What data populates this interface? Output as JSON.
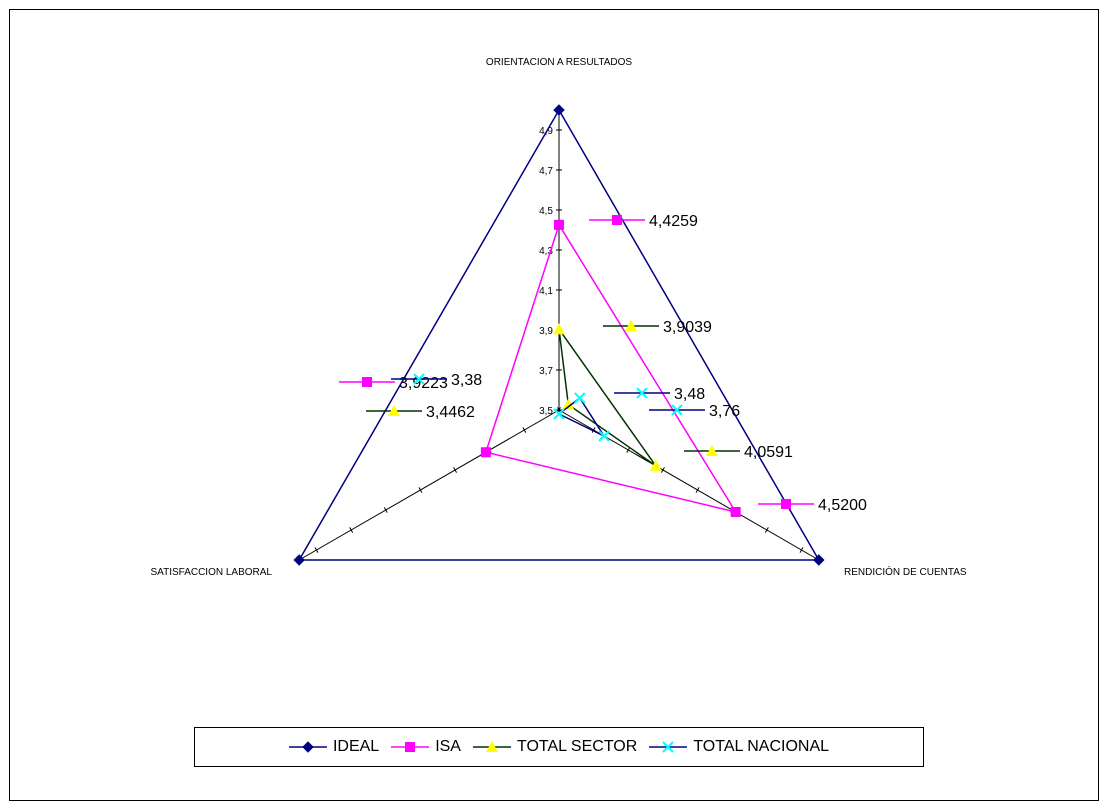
{
  "chart_data": {
    "type": "radar",
    "title": "",
    "axes": [
      "ORIENTACION A RESULTADOS",
      "RENDICIÓN DE CUENTAS",
      "SATISFACCION LABORAL"
    ],
    "radial_range": [
      3.5,
      5.0
    ],
    "tick_labels": [
      "3,5",
      "3,7",
      "3,9",
      "4,1",
      "4,3",
      "4,5",
      "4,7",
      "4,9"
    ],
    "tick_values": [
      3.5,
      3.7,
      3.9,
      4.1,
      4.3,
      4.5,
      4.7,
      4.9
    ],
    "legend_position": "bottom",
    "series": [
      {
        "name": "IDEAL",
        "values": [
          5.0,
          5.0,
          5.0
        ],
        "color": "#000080",
        "marker": "diamond",
        "labels": []
      },
      {
        "name": "ISA",
        "values": [
          4.4259,
          4.52,
          3.9223
        ],
        "color": "#ff00ff",
        "marker": "square",
        "labels": [
          "4,4259",
          "4,5200",
          "3,9223"
        ]
      },
      {
        "name": "TOTAL SECTOR",
        "values": [
          3.9039,
          4.0591,
          3.4462
        ],
        "color": "#003300",
        "marker_color": "#ffff00",
        "marker": "triangle",
        "labels": [
          "3,9039",
          "4,0591",
          "3,4462"
        ]
      },
      {
        "name": "TOTAL NACIONAL",
        "values": [
          3.48,
          3.76,
          3.38
        ],
        "color": "#000080",
        "marker_color": "#00ffff",
        "marker": "x",
        "labels": [
          "3,48",
          "3,76",
          "3,38"
        ]
      }
    ]
  }
}
